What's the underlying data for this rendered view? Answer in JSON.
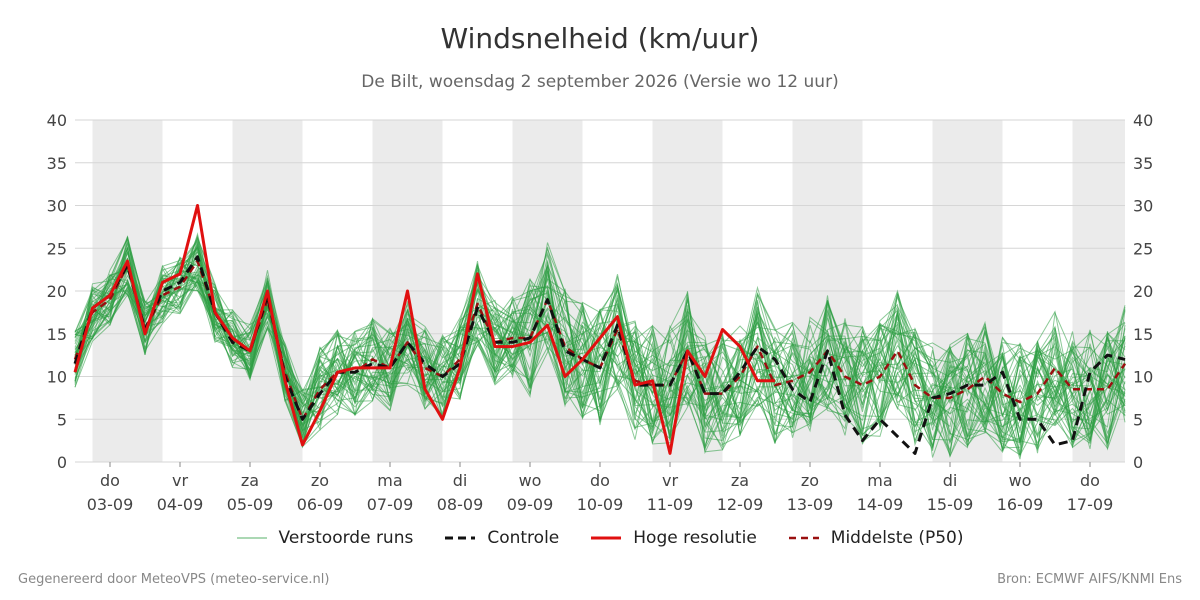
{
  "header": {
    "title": "Windsnelheid (km/uur)",
    "subtitle": "De Bilt, woensdag  2 september 2026 (Versie wo 12 uur)"
  },
  "footer": {
    "left": "Gegenereerd door MeteoVPS (meteo-service.nl)",
    "right": "Bron: ECMWF AIFS/KNMI Ens"
  },
  "legend": {
    "ensemble": "Verstoorde runs",
    "control": "Controle",
    "hires": "Hoge resolutie",
    "median": "Middelste (P50)"
  },
  "colors": {
    "ensemble": "#2e9e44",
    "control": "#111111",
    "hires": "#e01010",
    "median": "#9a1010",
    "shade": "#ebebeb",
    "grid": "#d6d6d6"
  },
  "chart_data": {
    "type": "line",
    "title": "Windsnelheid (km/uur)",
    "ylim": [
      0,
      40
    ],
    "yticks": [
      0,
      5,
      10,
      15,
      20,
      25,
      30,
      35,
      40
    ],
    "x_start_day": 2.5,
    "x_end_day": 17.5,
    "day_ticks": [
      {
        "day": 3,
        "weekday": "do",
        "date": "03-09"
      },
      {
        "day": 4,
        "weekday": "vr",
        "date": "04-09"
      },
      {
        "day": 5,
        "weekday": "za",
        "date": "05-09"
      },
      {
        "day": 6,
        "weekday": "zo",
        "date": "06-09"
      },
      {
        "day": 7,
        "weekday": "ma",
        "date": "07-09"
      },
      {
        "day": 8,
        "weekday": "di",
        "date": "08-09"
      },
      {
        "day": 9,
        "weekday": "wo",
        "date": "09-09"
      },
      {
        "day": 10,
        "weekday": "do",
        "date": "10-09"
      },
      {
        "day": 11,
        "weekday": "vr",
        "date": "11-09"
      },
      {
        "day": 12,
        "weekday": "za",
        "date": "12-09"
      },
      {
        "day": 13,
        "weekday": "zo",
        "date": "13-09"
      },
      {
        "day": 14,
        "weekday": "ma",
        "date": "14-09"
      },
      {
        "day": 15,
        "weekday": "di",
        "date": "15-09"
      },
      {
        "day": 16,
        "weekday": "wo",
        "date": "16-09"
      },
      {
        "day": 17,
        "weekday": "do",
        "date": "17-09"
      }
    ],
    "grid": true,
    "legend_position": "bottom",
    "series": [
      {
        "name": "Hoge resolutie",
        "x": [
          2.5,
          2.75,
          3.0,
          3.25,
          3.5,
          3.75,
          4.0,
          4.25,
          4.5,
          4.75,
          5.0,
          5.25,
          5.5,
          5.75,
          6.0,
          6.25,
          6.5,
          6.75,
          7.0,
          7.25,
          7.5,
          7.75,
          8.0,
          8.25,
          8.5,
          8.75,
          9.0,
          9.25,
          9.5,
          9.75,
          10.0,
          10.25,
          10.5,
          10.75,
          11.0,
          11.25,
          11.5,
          11.75,
          12.0,
          12.25,
          12.5
        ],
        "y": [
          10.5,
          18.0,
          19.5,
          23.5,
          15.0,
          21.0,
          22.0,
          30.0,
          17.5,
          14.5,
          13.0,
          20.0,
          9.5,
          2.0,
          6.0,
          10.5,
          11.0,
          11.0,
          11.0,
          20.0,
          8.5,
          5.0,
          11.0,
          22.0,
          13.5,
          13.5,
          14.0,
          16.0,
          10.0,
          12.0,
          14.5,
          17.0,
          9.0,
          9.5,
          1.0,
          13.0,
          10.0,
          15.5,
          13.5,
          9.5,
          9.5
        ]
      },
      {
        "name": "Controle",
        "x": [
          2.5,
          2.75,
          3.0,
          3.25,
          3.5,
          3.75,
          4.0,
          4.25,
          4.5,
          4.75,
          5.0,
          5.25,
          5.5,
          5.75,
          6.0,
          6.25,
          6.5,
          6.75,
          7.0,
          7.25,
          7.5,
          7.75,
          8.0,
          8.25,
          8.5,
          8.75,
          9.0,
          9.25,
          9.5,
          9.75,
          10.0,
          10.25,
          10.5,
          10.75,
          11.0,
          11.25,
          11.5,
          11.75,
          12.0,
          12.25,
          12.5,
          12.75,
          13.0,
          13.25,
          13.5,
          13.75,
          14.0,
          14.25,
          14.5,
          14.75,
          15.0,
          15.25,
          15.5,
          15.75,
          16.0,
          16.25,
          16.5,
          16.75,
          17.0,
          17.25,
          17.5
        ],
        "y": [
          11.5,
          18.0,
          19.5,
          23.0,
          15.5,
          20.0,
          21.0,
          24.0,
          17.5,
          14.0,
          13.0,
          19.5,
          10.0,
          5.0,
          8.0,
          10.5,
          10.5,
          11.5,
          11.0,
          14.0,
          11.5,
          10.0,
          11.5,
          18.0,
          14.0,
          14.0,
          14.5,
          19.0,
          13.0,
          12.0,
          11.0,
          16.0,
          9.0,
          9.0,
          9.0,
          13.0,
          8.0,
          8.0,
          10.5,
          13.5,
          12.0,
          8.5,
          7.0,
          13.0,
          5.5,
          2.5,
          5.0,
          3.0,
          1.0,
          7.5,
          8.0,
          9.0,
          9.0,
          10.5,
          5.0,
          5.0,
          2.0,
          2.5,
          10.5,
          12.5,
          12.0
        ]
      },
      {
        "name": "Middelste (P50)",
        "x": [
          2.5,
          2.75,
          3.0,
          3.25,
          3.5,
          3.75,
          4.0,
          4.25,
          4.5,
          4.75,
          5.0,
          5.25,
          5.5,
          5.75,
          6.0,
          6.25,
          6.5,
          6.75,
          7.0,
          7.25,
          7.5,
          7.75,
          8.0,
          8.25,
          8.5,
          8.75,
          9.0,
          9.25,
          9.5,
          9.75,
          10.0,
          10.25,
          10.5,
          10.75,
          11.0,
          11.25,
          11.5,
          11.75,
          12.0,
          12.25,
          12.5,
          12.75,
          13.0,
          13.25,
          13.5,
          13.75,
          14.0,
          14.25,
          14.5,
          14.75,
          15.0,
          15.25,
          15.5,
          15.75,
          16.0,
          16.25,
          16.5,
          16.75,
          17.0,
          17.25,
          17.5
        ],
        "y": [
          12.0,
          17.5,
          19.0,
          23.0,
          15.5,
          19.5,
          20.5,
          23.5,
          17.5,
          14.5,
          13.0,
          19.0,
          10.5,
          5.0,
          8.5,
          10.5,
          10.5,
          12.0,
          11.0,
          14.0,
          11.0,
          10.0,
          12.0,
          18.5,
          14.0,
          14.5,
          14.5,
          19.0,
          13.5,
          12.0,
          11.0,
          15.5,
          9.5,
          9.0,
          9.0,
          13.0,
          8.0,
          8.0,
          10.0,
          13.5,
          9.0,
          9.5,
          10.5,
          13.0,
          10.0,
          9.0,
          10.0,
          13.0,
          9.0,
          7.5,
          7.5,
          8.5,
          10.0,
          8.0,
          7.0,
          8.0,
          11.0,
          8.5,
          8.5,
          8.5,
          11.5
        ]
      }
    ]
  }
}
